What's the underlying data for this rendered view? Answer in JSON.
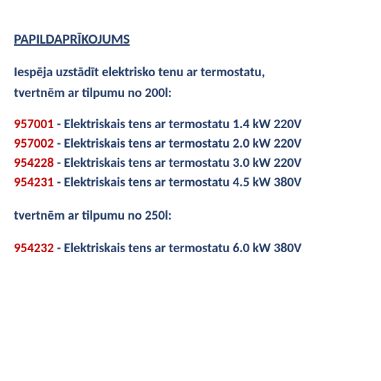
{
  "heading": "PAPILDAPRĪKOJUMS",
  "intro": "Iespēja uzstādīt elektrisko tenu ar termostatu,",
  "sub200": "tvertnēm ar tilpumu no 200l:",
  "sub250": "tvertnēm ar tilpumu no 250l:",
  "colors": {
    "code": "#c00000",
    "text": "#1f3864",
    "background": "#ffffff"
  },
  "fontsize_heading": 20,
  "fontsize_body": 19,
  "items200": [
    {
      "code": "957001",
      "desc": " - Elektriskais tens ar termostatu 1.4 kW 220V"
    },
    {
      "code": "957002",
      "desc": " - Elektriskais tens ar termostatu 2.0 kW 220V"
    },
    {
      "code": "954228",
      "desc": " - Elektriskais tens ar termostatu 3.0 kW 220V"
    },
    {
      "code": "954231",
      "desc": " - Elektriskais tens ar termostatu 4.5 kW 380V"
    }
  ],
  "items250": [
    {
      "code": "954232",
      "desc": " - Elektriskais tens ar termostatu 6.0 kW 380V"
    }
  ]
}
